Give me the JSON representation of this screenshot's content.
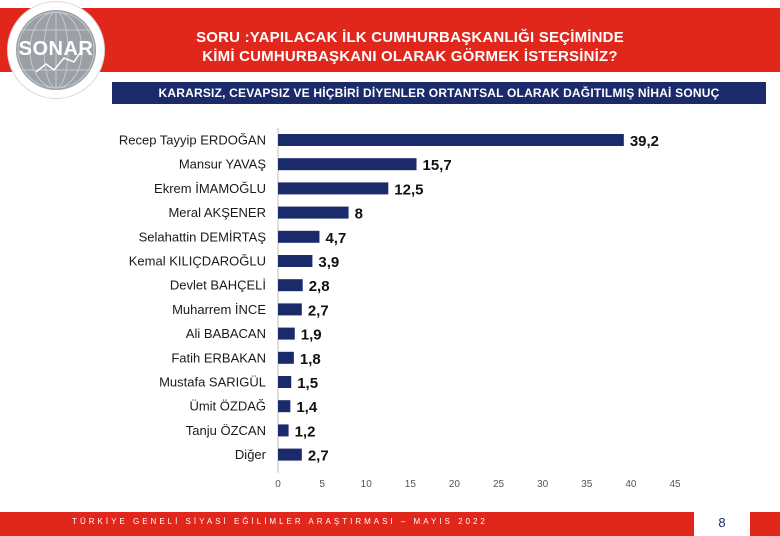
{
  "header": {
    "title_line1": "SORU :YAPILACAK İLK CUMHURBAŞKANLIĞI SEÇİMİNDE",
    "title_line2": "KİMİ CUMHURBAŞKANI OLARAK GÖRMEK İSTERSİNİZ?"
  },
  "logo": {
    "text": "SONAR"
  },
  "subheader": {
    "text": "KARARSIZ, CEVAPSIZ VE HİÇBİRİ DİYENLER ORTANTSAL OLARAK DAĞITILMIŞ NİHAİ SONUÇ"
  },
  "chart_data": {
    "type": "bar",
    "orientation": "horizontal",
    "categories": [
      "Recep Tayyip ERDOĞAN",
      "Mansur YAVAŞ",
      "Ekrem İMAMOĞLU",
      "Meral AKŞENER",
      "Selahattin DEMİRTAŞ",
      "Kemal KILIÇDAROĞLU",
      "Devlet BAHÇELİ",
      "Muharrem İNCE",
      "Ali BABACAN",
      "Fatih ERBAKAN",
      "Mustafa SARIGÜL",
      "Ümit ÖZDAĞ",
      "Tanju ÖZCAN",
      "Diğer"
    ],
    "values": [
      39.2,
      15.7,
      12.5,
      8,
      4.7,
      3.9,
      2.8,
      2.7,
      1.9,
      1.8,
      1.5,
      1.4,
      1.2,
      2.7
    ],
    "value_labels": [
      "39,2",
      "15,7",
      "12,5",
      "8",
      "4,7",
      "3,9",
      "2,8",
      "2,7",
      "1,9",
      "1,8",
      "1,5",
      "1,4",
      "1,2",
      "2,7"
    ],
    "xlim": [
      0,
      45
    ],
    "xticks": [
      0,
      5,
      10,
      15,
      20,
      25,
      30,
      35,
      40,
      45
    ],
    "bar_color": "#1b2a6b",
    "grid": false,
    "legend": "none"
  },
  "footer": {
    "text": "TÜRKİYE GENELİ SİYASİ EĞİLİMLER ARAŞTIRMASI – MAYIS 2022",
    "page": "8"
  },
  "colors": {
    "accent_red": "#e1261c",
    "navy": "#1b2a6b"
  }
}
